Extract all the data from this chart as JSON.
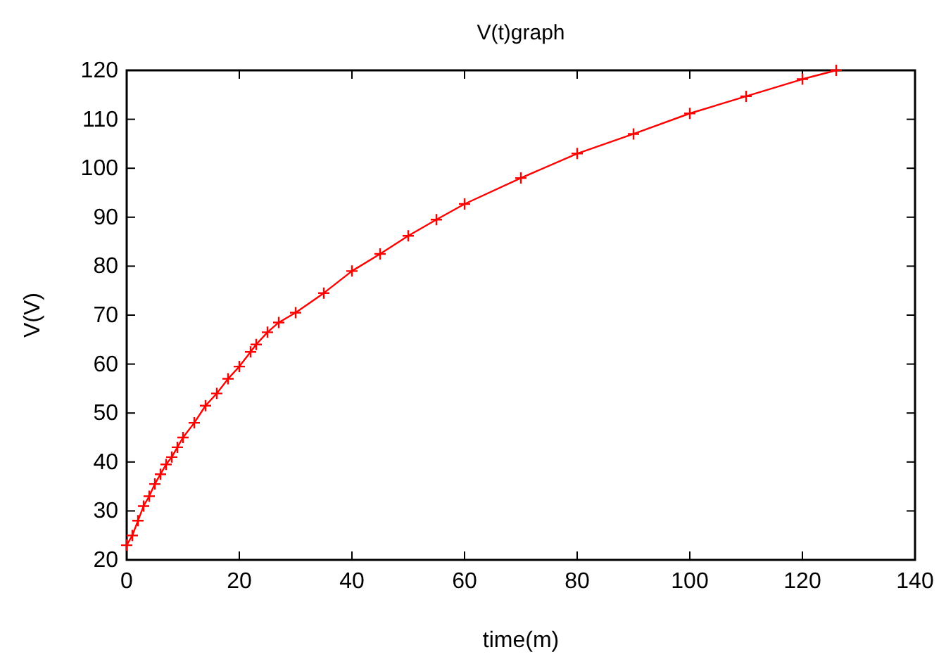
{
  "chart_data": {
    "type": "line",
    "title": "V(t)graph",
    "xlabel": "time(m)",
    "ylabel": "V(V)",
    "series": [
      {
        "color": "#ff0000",
        "x": [
          0,
          1,
          2,
          3,
          4,
          5,
          6,
          7,
          8,
          9,
          10,
          12,
          14,
          16,
          18,
          20,
          22,
          23,
          25,
          27,
          30,
          35,
          40,
          45,
          50,
          55,
          60,
          70,
          80,
          90,
          100,
          110,
          120,
          126
        ],
        "values": [
          23,
          25,
          28,
          31,
          33,
          35.5,
          37.5,
          39.5,
          41,
          43,
          45,
          48,
          51.5,
          54,
          57,
          59.5,
          62.5,
          64,
          66.5,
          68.5,
          70.5,
          74.5,
          79,
          82.5,
          86.2,
          89.5,
          92.7,
          98,
          103,
          107,
          111.2,
          114.7,
          118.2,
          120
        ]
      }
    ],
    "xlim": [
      0,
      140
    ],
    "xticks": [
      0,
      20,
      40,
      60,
      80,
      100,
      120,
      140
    ],
    "ylim": [
      20,
      120
    ],
    "yticks": [
      20,
      30,
      40,
      50,
      60,
      70,
      80,
      90,
      100,
      110,
      120
    ],
    "marker": "cross",
    "line_style": "solid"
  }
}
